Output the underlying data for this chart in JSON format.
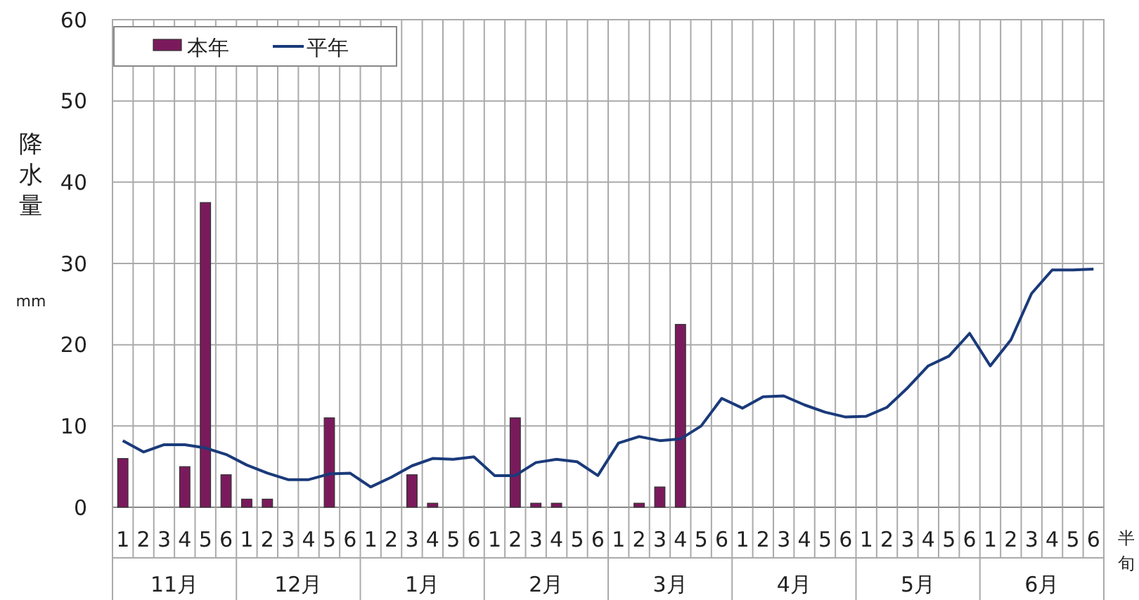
{
  "chart_data": {
    "type": "bar",
    "ylabel": "降水量",
    "xlabel": "半旬",
    "categories": [
      "1",
      "2",
      "3",
      "4",
      "5",
      "6",
      "1",
      "2",
      "3",
      "4",
      "5",
      "6",
      "1",
      "2",
      "3",
      "4",
      "5",
      "6",
      "1",
      "2",
      "3",
      "4",
      "5",
      "6",
      "1",
      "2",
      "3",
      "4",
      "5",
      "6",
      "1",
      "2",
      "3",
      "4",
      "5",
      "6",
      "1",
      "2",
      "3",
      "4",
      "5",
      "6",
      "1",
      "2",
      "3",
      "4",
      "5",
      "6"
    ],
    "annotations": [
      "mm",
      "11月",
      "12月",
      "1月",
      "2月",
      "3月",
      "4月",
      "5月",
      "6月"
    ],
    "series": [
      {
        "name": "本年",
        "type": "bar",
        "color": "#7a1a5c",
        "values": [
          6,
          0,
          0,
          5,
          37.5,
          4,
          1,
          1,
          0,
          0,
          11,
          0,
          0,
          0,
          4,
          0.5,
          0,
          0,
          0,
          11,
          0.5,
          0.5,
          0,
          0,
          0,
          0.5,
          2.5,
          22.5,
          null,
          null,
          null,
          null,
          null,
          null,
          null,
          null,
          null,
          null,
          null,
          null,
          null,
          null,
          null,
          null,
          null,
          null,
          null,
          null
        ]
      },
      {
        "name": "平年",
        "type": "line",
        "color": "#1a3a7a",
        "values": [
          8.2,
          6.8,
          7.7,
          7.7,
          7.3,
          6.5,
          5.2,
          4.2,
          3.4,
          3.4,
          4.1,
          4.2,
          2.5,
          3.7,
          5.1,
          6.0,
          5.9,
          6.2,
          3.9,
          3.9,
          5.5,
          5.9,
          5.6,
          3.9,
          7.9,
          8.7,
          8.2,
          8.4,
          10.0,
          13.4,
          12.2,
          13.6,
          13.7,
          12.6,
          11.7,
          11.1,
          11.2,
          12.3,
          14.7,
          17.4,
          18.6,
          21.4,
          17.4,
          20.6,
          26.3,
          29.2,
          29.2,
          29.3
        ]
      }
    ],
    "ylim": [
      0,
      60
    ],
    "yticks": [
      0,
      10,
      20,
      30,
      40,
      50,
      60
    ],
    "grid": true,
    "legend": "top left",
    "marker": "none"
  }
}
